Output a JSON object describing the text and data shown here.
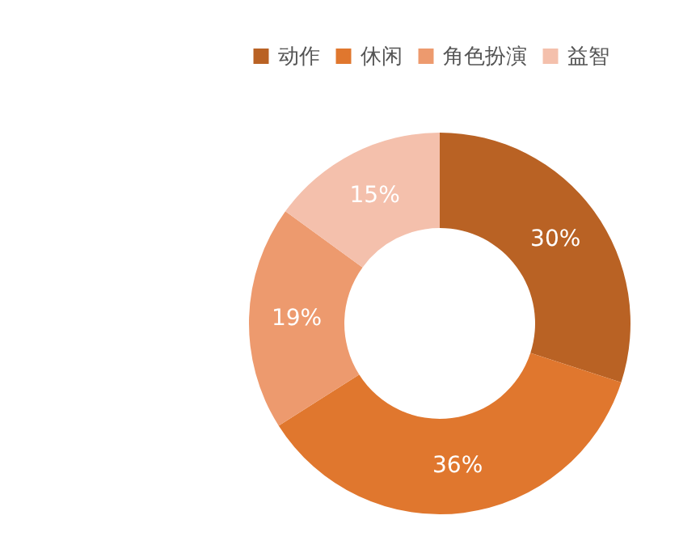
{
  "chart_data": {
    "type": "donut",
    "categories": [
      "动作",
      "休闲",
      "角色扮演",
      "益智"
    ],
    "values": [
      30,
      36,
      19,
      15
    ],
    "colors": [
      "#b96224",
      "#e0772e",
      "#ed9a6e",
      "#f4c0ac"
    ],
    "value_labels": [
      "30%",
      "36%",
      "19%",
      "15%"
    ],
    "legend": "top right"
  }
}
